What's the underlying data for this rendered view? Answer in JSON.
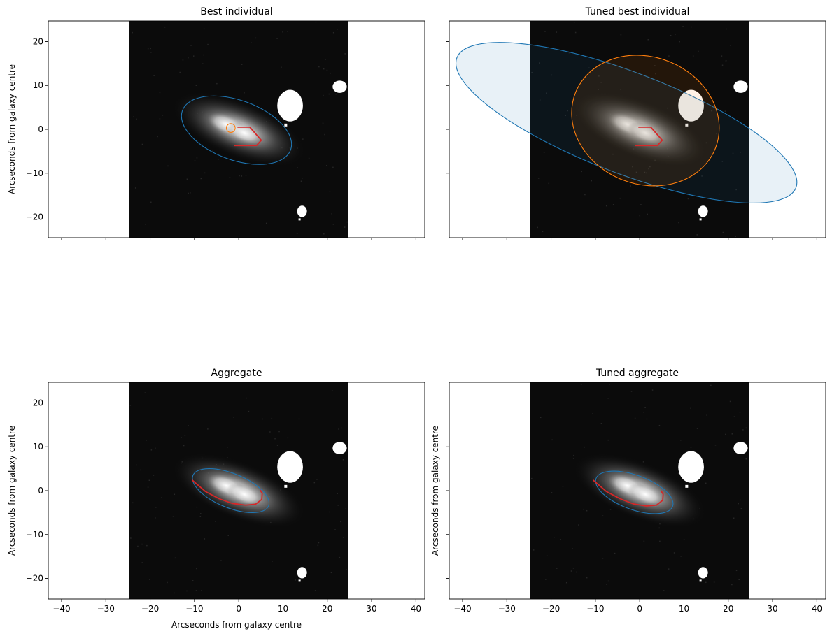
{
  "figure": {
    "ylabel": "Arcseconds from galaxy centre",
    "xlabel": "Arcseconds from galaxy centre"
  },
  "chart_data": [
    {
      "type": "image-overlay",
      "title": "Best individual",
      "xlim": [
        -43,
        42
      ],
      "ylim": [
        -24.7,
        24.7
      ],
      "xticks": [
        -40,
        -30,
        -20,
        -10,
        0,
        10,
        20,
        30,
        40
      ],
      "yticks": [
        -20,
        -10,
        0,
        10,
        20
      ],
      "show_xticklabels": false,
      "show_yticklabels": true,
      "show_xlabel": false,
      "show_ylabel": true,
      "image_extent": {
        "x": [
          -24.7,
          24.7
        ],
        "y": [
          -24.7,
          24.7
        ]
      },
      "galaxy": {
        "cx": 0,
        "cy": 0,
        "angle": -22
      },
      "ellipses": [
        {
          "cx": -0.5,
          "cy": -0.2,
          "rx": 13,
          "ry": 6.8,
          "angle": -20,
          "color": "#1f77b4",
          "filled": false
        },
        {
          "cx": -1.8,
          "cy": 0.3,
          "rx": 1.0,
          "ry": 1.0,
          "angle": 0,
          "color": "#ff7f0e",
          "filled": false
        }
      ],
      "arms": [
        {
          "color": "#d62728",
          "points": [
            [
              -0.3,
              0.5
            ],
            [
              2.5,
              0.5
            ],
            [
              5.1,
              -2.5
            ],
            [
              4.0,
              -3.7
            ],
            [
              -1.0,
              -3.7
            ]
          ]
        }
      ]
    },
    {
      "type": "image-overlay",
      "title": "Tuned best individual",
      "xlim": [
        -43,
        42
      ],
      "ylim": [
        -24.7,
        24.7
      ],
      "xticks": [
        -40,
        -30,
        -20,
        -10,
        0,
        10,
        20,
        30,
        40
      ],
      "yticks": [
        -20,
        -10,
        0,
        10,
        20
      ],
      "show_xticklabels": false,
      "show_yticklabels": false,
      "show_xlabel": false,
      "show_ylabel": false,
      "image_extent": {
        "x": [
          -24.7,
          24.7
        ],
        "y": [
          -24.7,
          24.7
        ]
      },
      "galaxy": {
        "cx": 0,
        "cy": 0,
        "angle": -22
      },
      "ellipses": [
        {
          "cx": -3,
          "cy": 1.5,
          "rx": 41,
          "ry": 11.5,
          "angle": -21,
          "color": "#1f77b4",
          "filled": true
        },
        {
          "cx": 1.3,
          "cy": 2,
          "rx": 17,
          "ry": 14.5,
          "angle": -22,
          "color": "#ff7f0e",
          "filled": true
        }
      ],
      "arms": [
        {
          "color": "#d62728",
          "points": [
            [
              -0.3,
              0.5
            ],
            [
              2.5,
              0.5
            ],
            [
              5.1,
              -2.5
            ],
            [
              4.0,
              -3.7
            ],
            [
              -1.0,
              -3.7
            ]
          ]
        }
      ]
    },
    {
      "type": "image-overlay",
      "title": "Aggregate",
      "xlim": [
        -43,
        42
      ],
      "ylim": [
        -24.7,
        24.7
      ],
      "xticks": [
        -40,
        -30,
        -20,
        -10,
        0,
        10,
        20,
        30,
        40
      ],
      "yticks": [
        -20,
        -10,
        0,
        10,
        20
      ],
      "show_xticklabels": true,
      "show_yticklabels": true,
      "show_xlabel": true,
      "show_ylabel": true,
      "image_extent": {
        "x": [
          -24.7,
          24.7
        ],
        "y": [
          -24.7,
          24.7
        ]
      },
      "galaxy": {
        "cx": 0,
        "cy": 0,
        "angle": -22
      },
      "ellipses": [
        {
          "cx": -1.8,
          "cy": 0,
          "rx": 9.2,
          "ry": 3.9,
          "angle": -22,
          "color": "#1f77b4",
          "filled": false
        }
      ],
      "arms": [
        {
          "color": "#d62728",
          "points": [
            [
              -10.5,
              2.4
            ],
            [
              -7.5,
              -0.2
            ],
            [
              -4.5,
              -1.8
            ],
            [
              -1.5,
              -2.9
            ],
            [
              1.5,
              -3.3
            ],
            [
              3.8,
              -3.1
            ],
            [
              5.2,
              -2.0
            ],
            [
              5.3,
              -0.6
            ],
            [
              4.8,
              0.2
            ]
          ]
        }
      ]
    },
    {
      "type": "image-overlay",
      "title": "Tuned aggregate",
      "xlim": [
        -43,
        42
      ],
      "ylim": [
        -24.7,
        24.7
      ],
      "xticks": [
        -40,
        -30,
        -20,
        -10,
        0,
        10,
        20,
        30,
        40
      ],
      "yticks": [
        -20,
        -10,
        0,
        10,
        20
      ],
      "show_xticklabels": true,
      "show_yticklabels": false,
      "show_xlabel": false,
      "show_ylabel": true,
      "image_extent": {
        "x": [
          -24.7,
          24.7
        ],
        "y": [
          -24.7,
          24.7
        ]
      },
      "galaxy": {
        "cx": 0,
        "cy": 0,
        "angle": -22
      },
      "ellipses": [
        {
          "cx": -1.2,
          "cy": -0.4,
          "rx": 9.2,
          "ry": 3.9,
          "angle": -20,
          "color": "#1f77b4",
          "filled": false
        }
      ],
      "arms": [
        {
          "color": "#d62728",
          "points": [
            [
              -10.5,
              2.4
            ],
            [
              -7.5,
              -0.2
            ],
            [
              -4.5,
              -1.8
            ],
            [
              -1.5,
              -3.0
            ],
            [
              1.5,
              -3.5
            ],
            [
              3.8,
              -3.3
            ],
            [
              5.2,
              -2.2
            ],
            [
              5.3,
              -0.8
            ],
            [
              4.8,
              0.0
            ]
          ]
        }
      ]
    }
  ]
}
